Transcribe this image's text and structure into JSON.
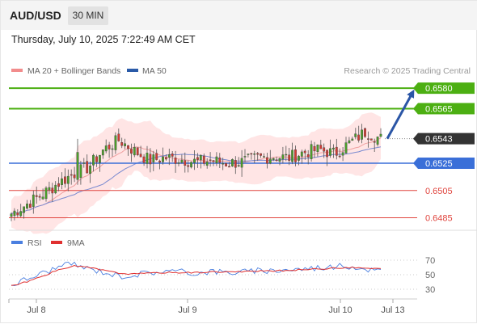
{
  "header": {
    "symbol": "AUD/USD",
    "timeframe": "30 MIN"
  },
  "datetime": "Thursday, July 10, 2025 7:22:49 AM CET",
  "legend": {
    "ma20_bb": "MA 20 + Bollinger Bands",
    "ma50": "MA 50",
    "credit": "Research © 2025 Trading Central"
  },
  "rsi_legend": {
    "rsi": "RSI",
    "ma": "9MA"
  },
  "colors": {
    "resistance": "#4caf12",
    "support": "#e0453e",
    "pivot": "#3a6fd8",
    "current": "#333333",
    "arrow": "#2b56a6",
    "bollinger": "#ffdcdc",
    "ma20": "#f0a0a0",
    "ma50": "#7a8ad0",
    "rsi_line": "#4a7fe0",
    "rsi_ma": "#e03030"
  },
  "chart_data": [
    {
      "type": "candlestick",
      "title": "AUD/USD 30 MIN",
      "x_ticks": [
        "Jul 8",
        "Jul 9",
        "Jul 10",
        "Jul 13"
      ],
      "y_range": [
        0.648,
        0.6586
      ],
      "levels": [
        {
          "value": 0.658,
          "label": "0.6580",
          "kind": "resistance"
        },
        {
          "value": 0.6565,
          "label": "0.6565",
          "kind": "resistance"
        },
        {
          "value": 0.6543,
          "label": "0.6543",
          "kind": "current"
        },
        {
          "value": 0.6525,
          "label": "0.6525",
          "kind": "pivot"
        },
        {
          "value": 0.6505,
          "label": "0.6505",
          "kind": "support"
        },
        {
          "value": 0.6485,
          "label": "0.6485",
          "kind": "support"
        }
      ],
      "close_anchors": [
        0.6488,
        0.6495,
        0.6502,
        0.651,
        0.6517,
        0.6522,
        0.6535,
        0.6542,
        0.6534,
        0.6527,
        0.6529,
        0.6528,
        0.6526,
        0.6527,
        0.6525,
        0.6526,
        0.6529,
        0.653,
        0.6529,
        0.6533,
        0.6535,
        0.6532,
        0.654,
        0.6548,
        0.6543
      ],
      "projection": {
        "from": 0.6543,
        "to": 0.658
      }
    },
    {
      "type": "line",
      "title": "RSI",
      "series": [
        {
          "name": "RSI",
          "anchors": [
            36,
            44,
            52,
            60,
            65,
            58,
            54,
            48,
            50,
            53,
            55,
            54,
            52,
            55,
            53,
            54,
            55,
            56,
            57,
            58,
            60,
            61,
            62,
            58,
            55
          ]
        },
        {
          "name": "9MA",
          "anchors": [
            35,
            40,
            48,
            56,
            62,
            60,
            56,
            52,
            51,
            52,
            53,
            53,
            53,
            54,
            54,
            54,
            55,
            55,
            56,
            57,
            58,
            59,
            60,
            59,
            58
          ]
        }
      ],
      "y_ticks": [
        70,
        50,
        30
      ],
      "y_range": [
        20,
        80
      ]
    }
  ]
}
